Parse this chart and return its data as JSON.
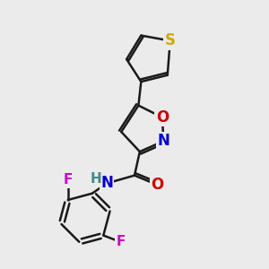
{
  "background_color": "#ebebeb",
  "bond_color": "#1a1a1a",
  "bond_width": 1.8,
  "atoms": {
    "S": {
      "color": "#ccaa00",
      "fontsize": 12,
      "fontweight": "bold"
    },
    "O": {
      "color": "#cc0000",
      "fontsize": 12,
      "fontweight": "bold"
    },
    "N_iso": {
      "color": "#0000cc",
      "fontsize": 12,
      "fontweight": "bold"
    },
    "N_amide": {
      "color": "#0000cc",
      "fontsize": 12,
      "fontweight": "bold"
    },
    "F": {
      "color": "#cc00cc",
      "fontsize": 11,
      "fontweight": "bold"
    },
    "H": {
      "color": "#448888",
      "fontsize": 11,
      "fontweight": "bold"
    }
  }
}
